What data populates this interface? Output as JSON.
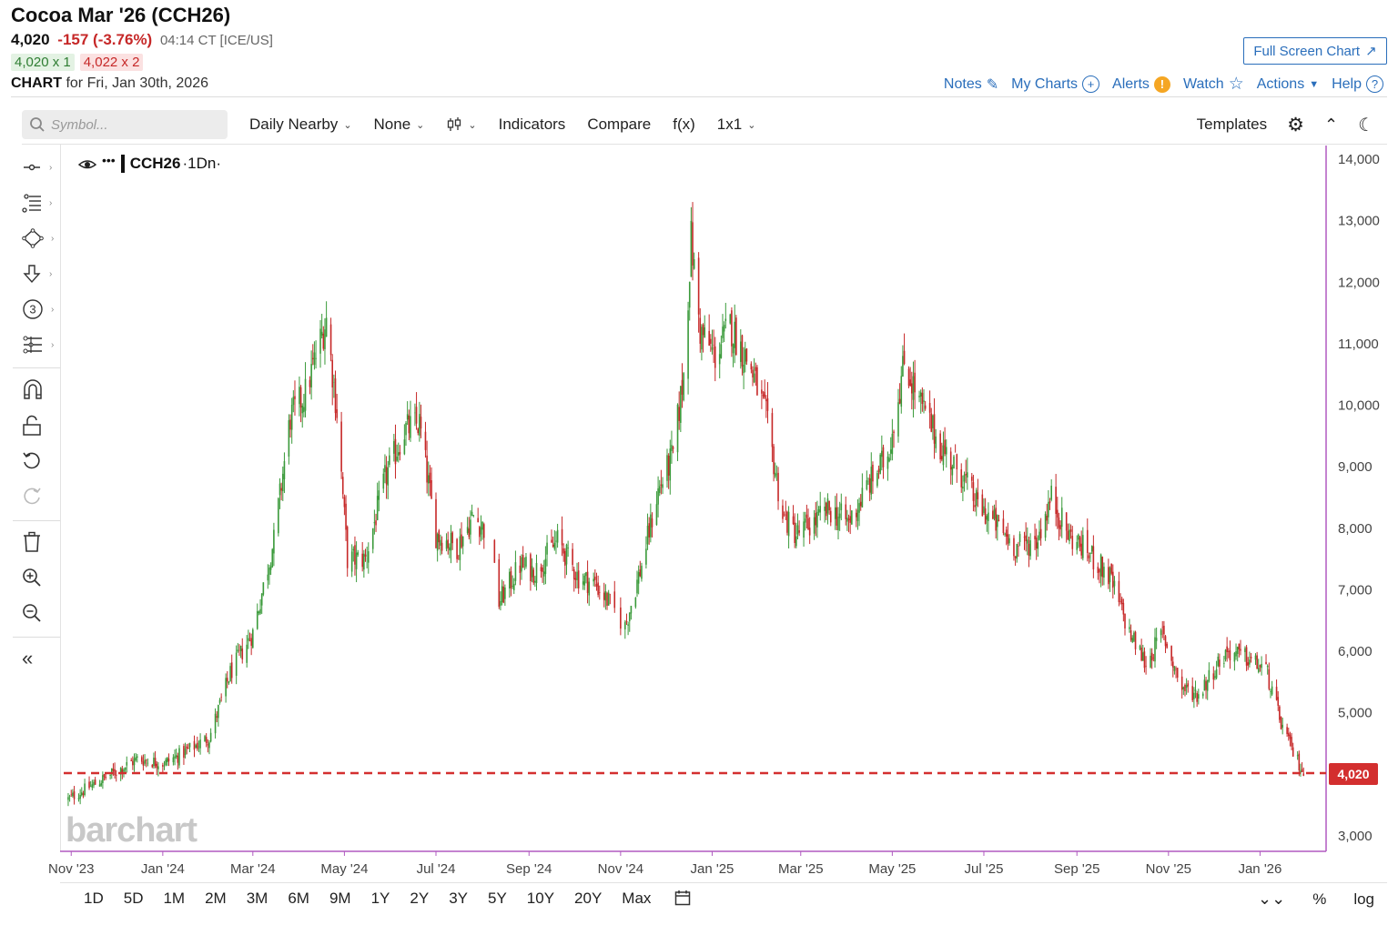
{
  "header": {
    "title": "Cocoa Mar '26 (CCH26)",
    "last": "4,020",
    "change": "-157 (-3.76%)",
    "time": "04:14 CT [ICE/US]",
    "bid": "4,020 x 1",
    "ask": "4,022 x 2",
    "chart_label": "CHART",
    "chart_for": "for Fri, Jan 30th, 2026",
    "fullscreen_label": "Full Screen Chart"
  },
  "toplinks": {
    "notes": "Notes",
    "my_charts": "My Charts",
    "alerts": "Alerts",
    "watch": "Watch",
    "actions": "Actions",
    "help": "Help"
  },
  "toolbar": {
    "search_placeholder": "Symbol...",
    "period": "Daily Nearby",
    "overlay": "None",
    "indicators": "Indicators",
    "compare": "Compare",
    "fx": "f(x)",
    "layout": "1x1",
    "templates": "Templates"
  },
  "legend": {
    "symbol": "CCH26",
    "interval": "·1Dn·"
  },
  "watermark": "barchart",
  "current_price_label": "4,020",
  "ranges": [
    "1D",
    "5D",
    "1M",
    "2M",
    "3M",
    "6M",
    "9M",
    "1Y",
    "2Y",
    "3Y",
    "5Y",
    "10Y",
    "20Y",
    "Max"
  ],
  "bottom_right": {
    "percent": "%",
    "log": "log"
  },
  "colors": {
    "up": "#3a9a3a",
    "down": "#c62828",
    "accent": "#2a6ebb",
    "axis": "#b05ac0",
    "price_line": "#d32f2f"
  },
  "chart_data": {
    "type": "candlestick",
    "title": "",
    "xlabel": "",
    "ylabel": "",
    "ylim": [
      2750,
      14200
    ],
    "y_ticks": [
      "14,000",
      "13,000",
      "12,000",
      "11,000",
      "10,000",
      "9,000",
      "8,000",
      "7,000",
      "6,000",
      "5,000",
      "3,000"
    ],
    "y_tick_values": [
      14000,
      13000,
      12000,
      11000,
      10000,
      9000,
      8000,
      7000,
      6000,
      5000,
      3000
    ],
    "x_ticks": [
      "Nov '23",
      "Jan '24",
      "Mar '24",
      "May '24",
      "Jul '24",
      "Sep '24",
      "Nov '24",
      "Jan '25",
      "Mar '25",
      "May '25",
      "Jul '25",
      "Sep '25",
      "Nov '25",
      "Jan '26"
    ],
    "x_tick_dates": [
      "2023-11-01",
      "2024-01-01",
      "2024-03-01",
      "2024-05-01",
      "2024-07-01",
      "2024-09-01",
      "2024-11-01",
      "2025-01-01",
      "2025-03-01",
      "2025-05-01",
      "2025-07-01",
      "2025-09-01",
      "2025-11-01",
      "2026-01-01"
    ],
    "x_range": [
      "2023-10-27",
      "2026-02-14"
    ],
    "current_price": 4020,
    "series": [
      {
        "name": "CCH26",
        "closes": [
          [
            "2023-10-30",
            3600
          ],
          [
            "2023-11-15",
            3820
          ],
          [
            "2023-12-01",
            4050
          ],
          [
            "2023-12-15",
            4250
          ],
          [
            "2024-01-02",
            4180
          ],
          [
            "2024-01-15",
            4350
          ],
          [
            "2024-02-01",
            4600
          ],
          [
            "2024-02-15",
            5650
          ],
          [
            "2024-03-01",
            6300
          ],
          [
            "2024-03-15",
            7800
          ],
          [
            "2024-03-26",
            9800
          ],
          [
            "2024-04-05",
            10200
          ],
          [
            "2024-04-19",
            11400
          ],
          [
            "2024-04-26",
            9900
          ],
          [
            "2024-05-03",
            7500
          ],
          [
            "2024-05-15",
            7500
          ],
          [
            "2024-05-28",
            8800
          ],
          [
            "2024-06-10",
            9600
          ],
          [
            "2024-06-20",
            9700
          ],
          [
            "2024-07-01",
            7900
          ],
          [
            "2024-07-15",
            7700
          ],
          [
            "2024-07-26",
            8200
          ],
          [
            "2024-08-05",
            7900
          ],
          [
            "2024-08-12",
            6800
          ],
          [
            "2024-08-26",
            7400
          ],
          [
            "2024-09-05",
            7300
          ],
          [
            "2024-09-20",
            7800
          ],
          [
            "2024-10-04",
            7200
          ],
          [
            "2024-10-15",
            7100
          ],
          [
            "2024-10-24",
            6800
          ],
          [
            "2024-11-04",
            6400
          ],
          [
            "2024-11-15",
            7400
          ],
          [
            "2024-11-26",
            8600
          ],
          [
            "2024-12-06",
            9200
          ],
          [
            "2024-12-13",
            10500
          ],
          [
            "2024-12-18",
            12700
          ],
          [
            "2024-12-24",
            11200
          ],
          [
            "2025-01-03",
            10800
          ],
          [
            "2025-01-13",
            11300
          ],
          [
            "2025-01-27",
            10600
          ],
          [
            "2025-02-06",
            9800
          ],
          [
            "2025-02-17",
            8200
          ],
          [
            "2025-02-26",
            7900
          ],
          [
            "2025-03-10",
            8100
          ],
          [
            "2025-03-20",
            8300
          ],
          [
            "2025-04-02",
            8100
          ],
          [
            "2025-04-15",
            8700
          ],
          [
            "2025-04-28",
            9200
          ],
          [
            "2025-05-09",
            10700
          ],
          [
            "2025-05-20",
            10000
          ],
          [
            "2025-06-03",
            9300
          ],
          [
            "2025-06-16",
            8900
          ],
          [
            "2025-06-26",
            8400
          ],
          [
            "2025-07-08",
            8100
          ],
          [
            "2025-07-22",
            7700
          ],
          [
            "2025-08-05",
            7800
          ],
          [
            "2025-08-15",
            8500
          ],
          [
            "2025-08-26",
            7900
          ],
          [
            "2025-09-09",
            7600
          ],
          [
            "2025-09-23",
            7200
          ],
          [
            "2025-10-06",
            6300
          ],
          [
            "2025-10-17",
            5800
          ],
          [
            "2025-10-28",
            6300
          ],
          [
            "2025-11-10",
            5400
          ],
          [
            "2025-11-21",
            5300
          ],
          [
            "2025-12-01",
            5700
          ],
          [
            "2025-12-10",
            6000
          ],
          [
            "2025-12-22",
            5900
          ],
          [
            "2026-01-05",
            5700
          ],
          [
            "2026-01-14",
            4900
          ],
          [
            "2026-01-22",
            4400
          ],
          [
            "2026-01-30",
            4020
          ]
        ]
      }
    ],
    "grid": false,
    "legend_placement": "top-left"
  }
}
